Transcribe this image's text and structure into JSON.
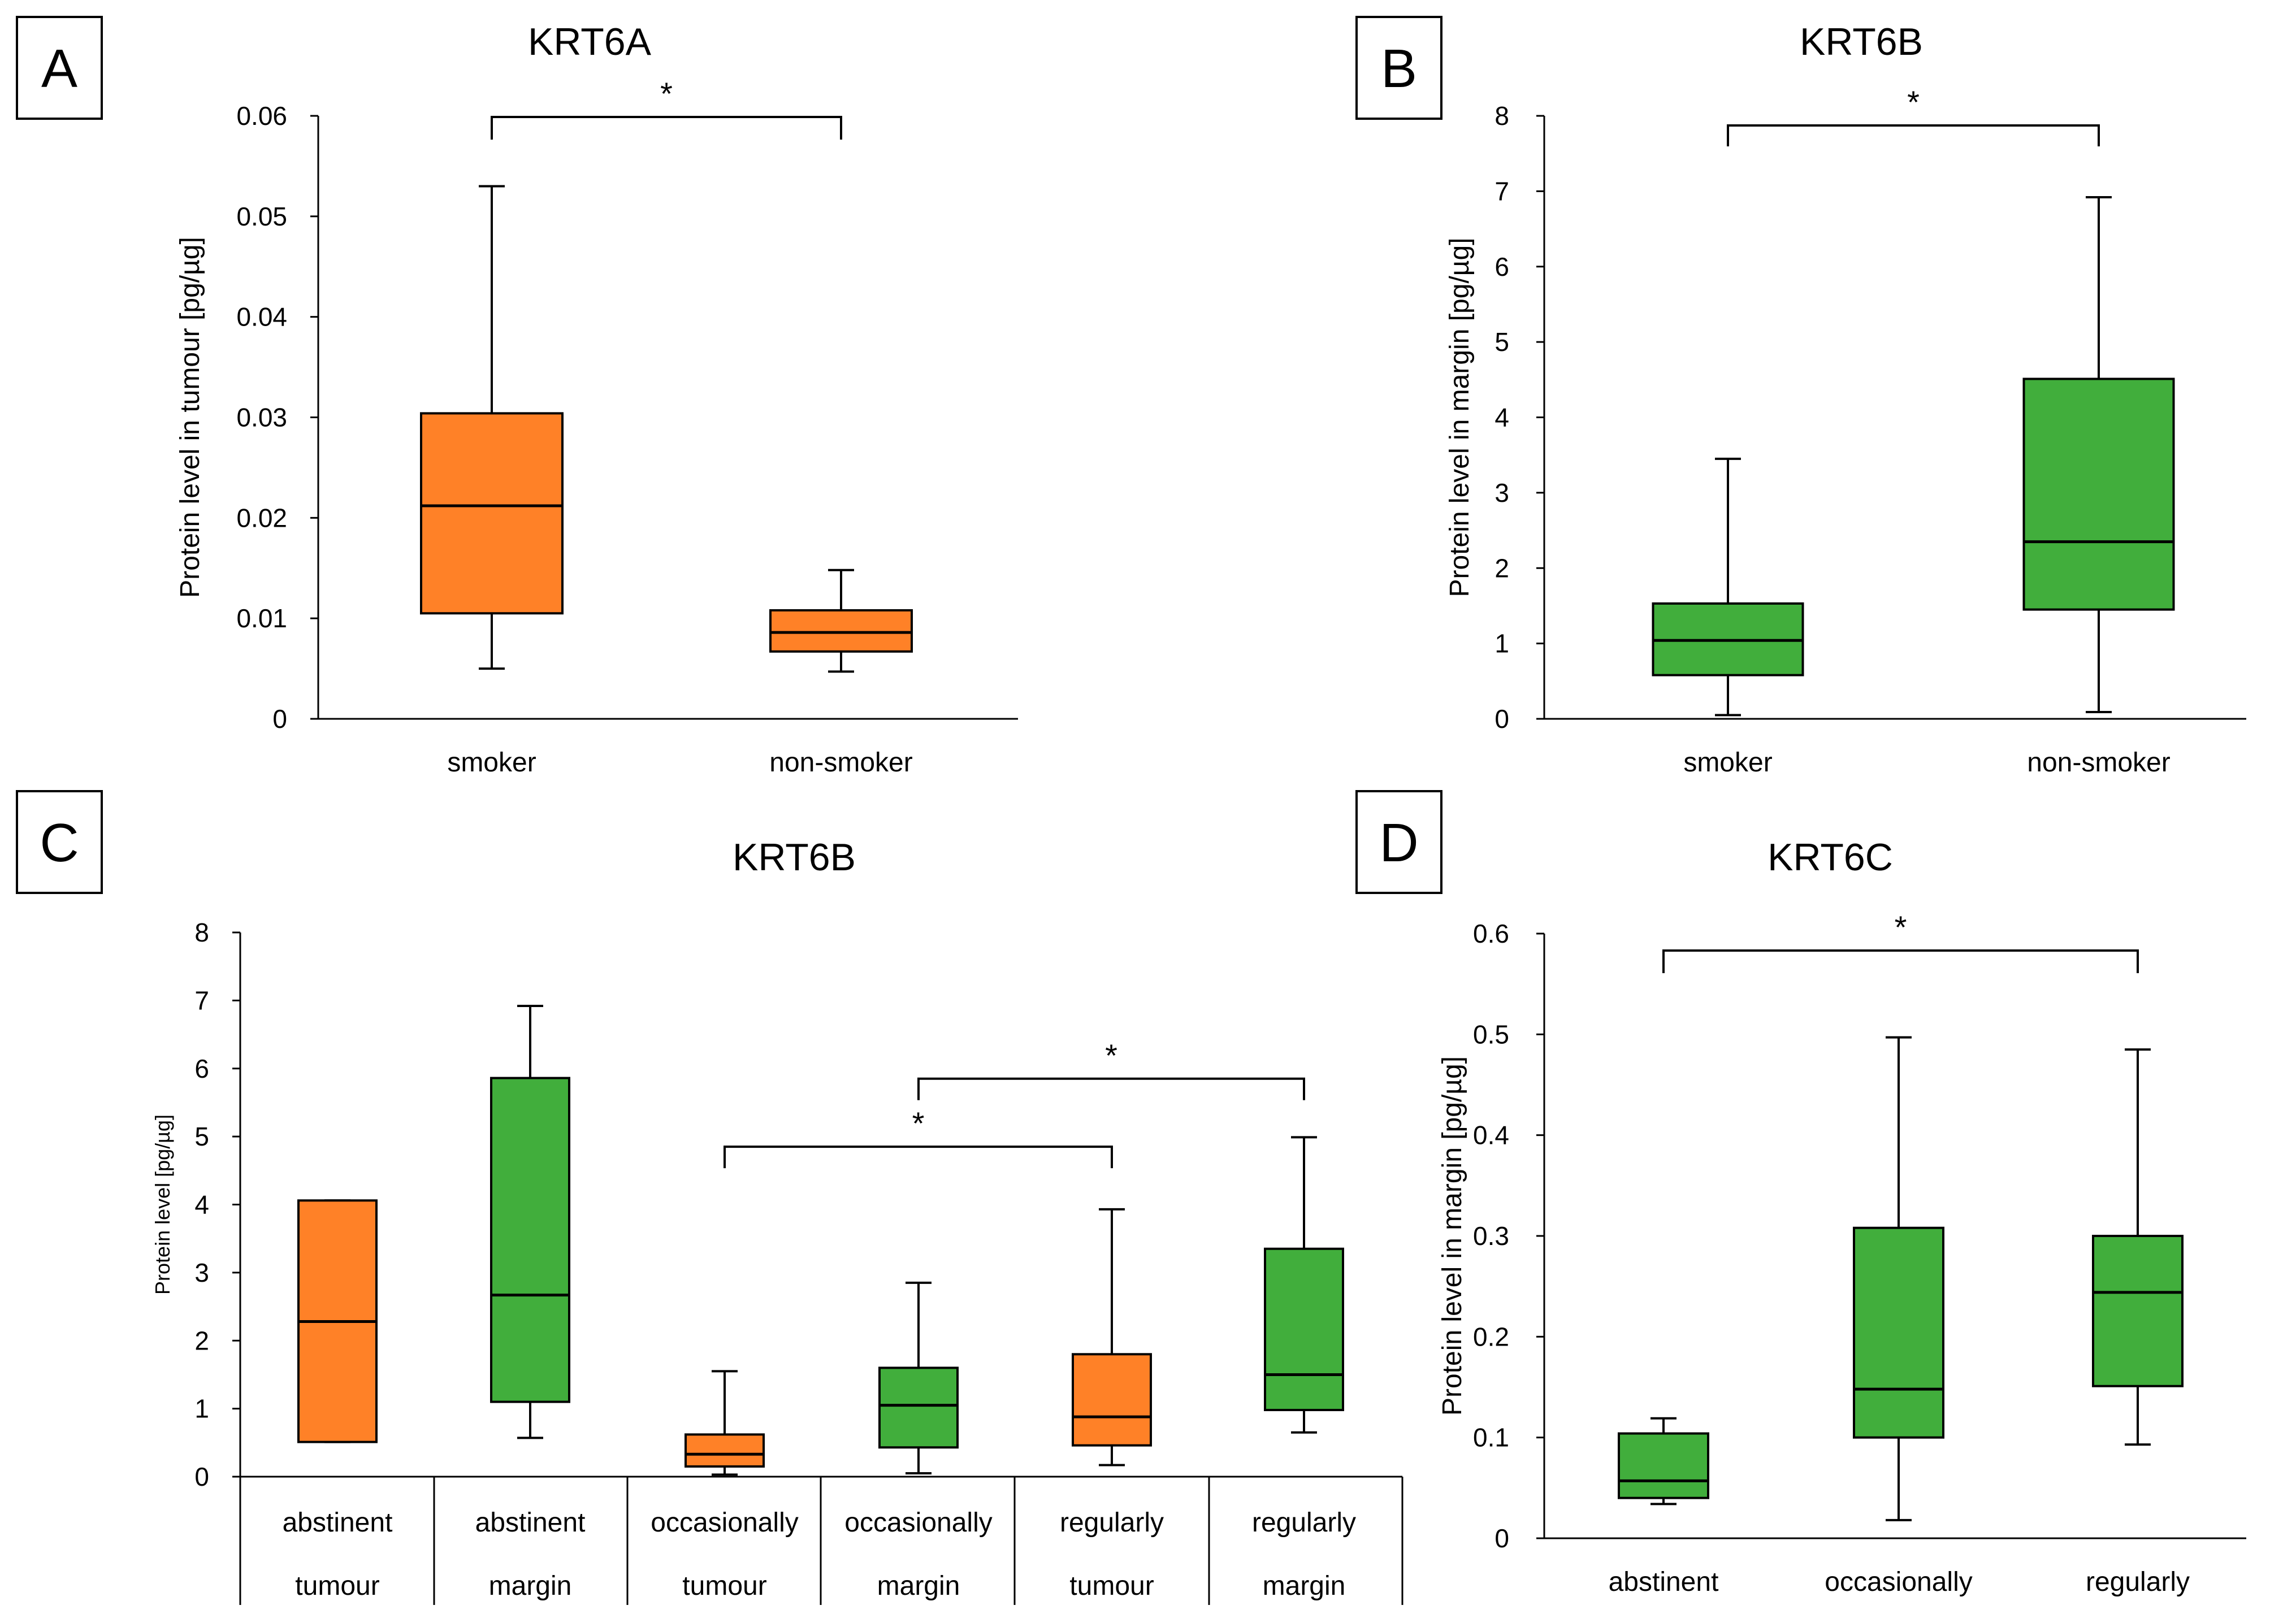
{
  "colors": {
    "orange": "#FF8127",
    "green": "#41AE3C"
  },
  "chart_data": [
    {
      "panel": "A",
      "type": "box",
      "title": "KRT6A",
      "ylabel": "Protein level in tumour [pg/µg]",
      "ylim": [
        0,
        0.06
      ],
      "yticks": [
        0,
        0.01,
        0.02,
        0.03,
        0.04,
        0.05,
        0.06
      ],
      "ytick_labels": [
        "0",
        "0.01",
        "0.02",
        "0.03",
        "0.04",
        "0.05",
        "0.06"
      ],
      "categories": [
        "smoker",
        "non-smoker"
      ],
      "boxes": [
        {
          "name": "smoker",
          "min": 0.005,
          "q1": 0.0105,
          "median": 0.0212,
          "q3": 0.0304,
          "max": 0.053,
          "color": "orange"
        },
        {
          "name": "non-smoker",
          "min": 0.0047,
          "q1": 0.0067,
          "median": 0.0086,
          "q3": 0.0108,
          "max": 0.0148,
          "color": "orange"
        }
      ],
      "significance": [
        {
          "from": 0,
          "to": 1,
          "label": "*"
        }
      ]
    },
    {
      "panel": "B",
      "type": "box",
      "title": "KRT6B",
      "ylabel": "Protein level in margin [pg/µg]",
      "ylim": [
        0,
        8
      ],
      "yticks": [
        0,
        1,
        2,
        3,
        4,
        5,
        6,
        7,
        8
      ],
      "ytick_labels": [
        "0",
        "1",
        "2",
        "3",
        "4",
        "5",
        "6",
        "7",
        "8"
      ],
      "categories": [
        "smoker",
        "non-smoker"
      ],
      "boxes": [
        {
          "name": "smoker",
          "min": 0.05,
          "q1": 0.58,
          "median": 1.04,
          "q3": 1.53,
          "max": 3.45,
          "color": "green"
        },
        {
          "name": "non-smoker",
          "min": 0.09,
          "q1": 1.45,
          "median": 2.35,
          "q3": 4.51,
          "max": 6.92,
          "color": "green"
        }
      ],
      "significance": [
        {
          "from": 0,
          "to": 1,
          "label": "*"
        }
      ]
    },
    {
      "panel": "C",
      "type": "box",
      "title": "KRT6B",
      "ylabel": "Protein level [pg/µg]",
      "ylim": [
        0,
        8
      ],
      "yticks": [
        0,
        1,
        2,
        3,
        4,
        5,
        6,
        7,
        8
      ],
      "ytick_labels": [
        "0",
        "1",
        "2",
        "3",
        "4",
        "5",
        "6",
        "7",
        "8"
      ],
      "categories": [
        [
          "abstinent",
          "tumour"
        ],
        [
          "abstinent",
          "margin"
        ],
        [
          "occasionally",
          "tumour"
        ],
        [
          "occasionally",
          "margin"
        ],
        [
          "regularly",
          "tumour"
        ],
        [
          "regularly",
          "margin"
        ]
      ],
      "boxes": [
        {
          "name": "abstinent tumour",
          "min": 0.51,
          "q1": 0.51,
          "median": 2.28,
          "q3": 4.06,
          "max": 4.06,
          "color": "orange"
        },
        {
          "name": "abstinent margin",
          "min": 0.57,
          "q1": 1.1,
          "median": 2.67,
          "q3": 5.86,
          "max": 6.92,
          "color": "green"
        },
        {
          "name": "occasionally tumour",
          "min": 0.03,
          "q1": 0.15,
          "median": 0.33,
          "q3": 0.62,
          "max": 1.55,
          "color": "orange"
        },
        {
          "name": "occasionally margin",
          "min": 0.05,
          "q1": 0.43,
          "median": 1.05,
          "q3": 1.6,
          "max": 2.85,
          "color": "green"
        },
        {
          "name": "regularly tumour",
          "min": 0.17,
          "q1": 0.46,
          "median": 0.88,
          "q3": 1.8,
          "max": 3.93,
          "color": "orange"
        },
        {
          "name": "regularly margin",
          "min": 0.65,
          "q1": 0.98,
          "median": 1.5,
          "q3": 3.35,
          "max": 4.99,
          "color": "green"
        }
      ],
      "significance": [
        {
          "from": 2,
          "to": 4,
          "label": "*",
          "level": 4.85
        },
        {
          "from": 3,
          "to": 5,
          "label": "*",
          "level": 5.85
        }
      ]
    },
    {
      "panel": "D",
      "type": "box",
      "title": "KRT6C",
      "ylabel": "Protein level in margin [pg/µg]",
      "ylim": [
        0,
        0.6
      ],
      "yticks": [
        0,
        0.1,
        0.2,
        0.3,
        0.4,
        0.5,
        0.6
      ],
      "ytick_labels": [
        "0",
        "0.1",
        "0.2",
        "0.3",
        "0.4",
        "0.5",
        "0.6"
      ],
      "categories": [
        "abstinent",
        "occasionally",
        "regularly"
      ],
      "boxes": [
        {
          "name": "abstinent",
          "min": 0.034,
          "q1": 0.04,
          "median": 0.057,
          "q3": 0.104,
          "max": 0.119,
          "color": "green"
        },
        {
          "name": "occasionally",
          "min": 0.018,
          "q1": 0.1,
          "median": 0.148,
          "q3": 0.308,
          "max": 0.497,
          "color": "green"
        },
        {
          "name": "regularly",
          "min": 0.093,
          "q1": 0.151,
          "median": 0.244,
          "q3": 0.3,
          "max": 0.485,
          "color": "green"
        }
      ],
      "significance": [
        {
          "from": 0,
          "to": 2,
          "label": "*"
        }
      ]
    }
  ]
}
